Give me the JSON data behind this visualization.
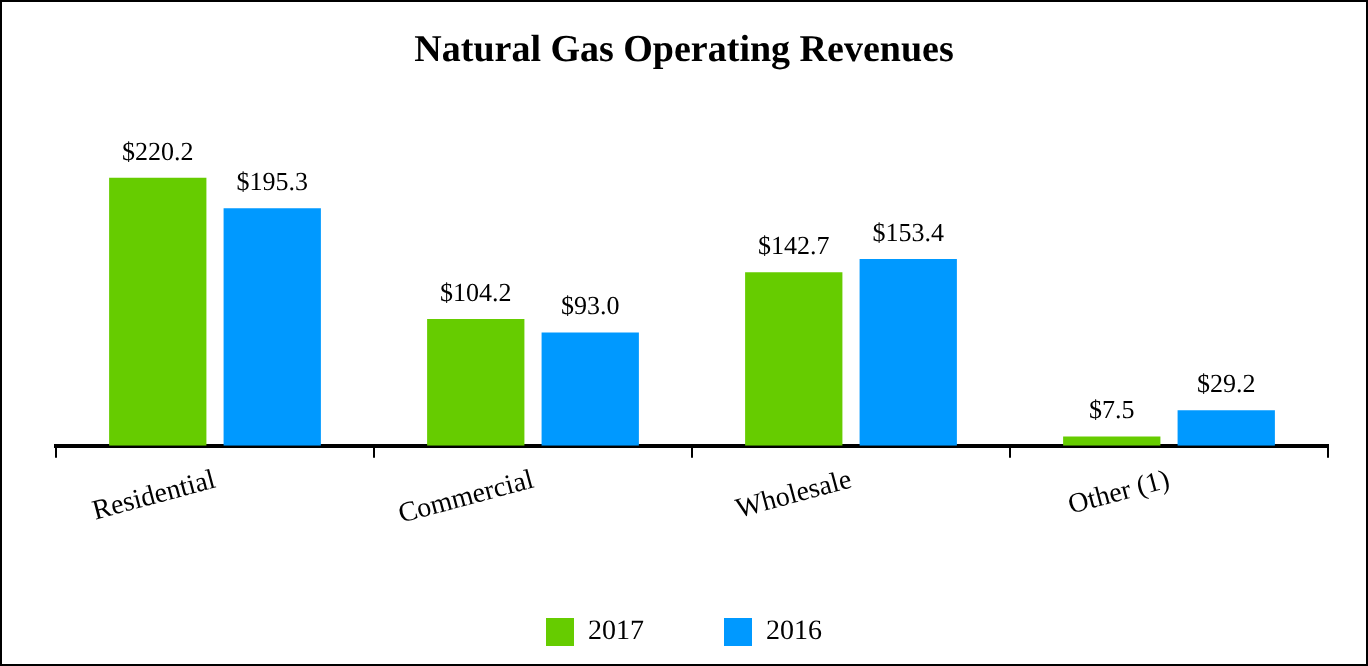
{
  "chart_data": {
    "type": "bar",
    "title": "Natural Gas Operating Revenues",
    "categories": [
      "Residential",
      "Commercial",
      "Wholesale",
      "Other (1)"
    ],
    "legend": "bottom",
    "series": [
      {
        "name": "2017",
        "color": "#66cc00",
        "values": [
          220.2,
          104.2,
          142.7,
          7.5
        ],
        "value_labels": [
          "$220.2",
          "$104.2",
          "$142.7",
          "$7.5"
        ]
      },
      {
        "name": "2016",
        "color": "#0099ff",
        "values": [
          195.3,
          93.0,
          153.4,
          29.2
        ],
        "value_labels": [
          "$195.3",
          "$93.0",
          "$153.4",
          "$29.2"
        ]
      }
    ]
  }
}
